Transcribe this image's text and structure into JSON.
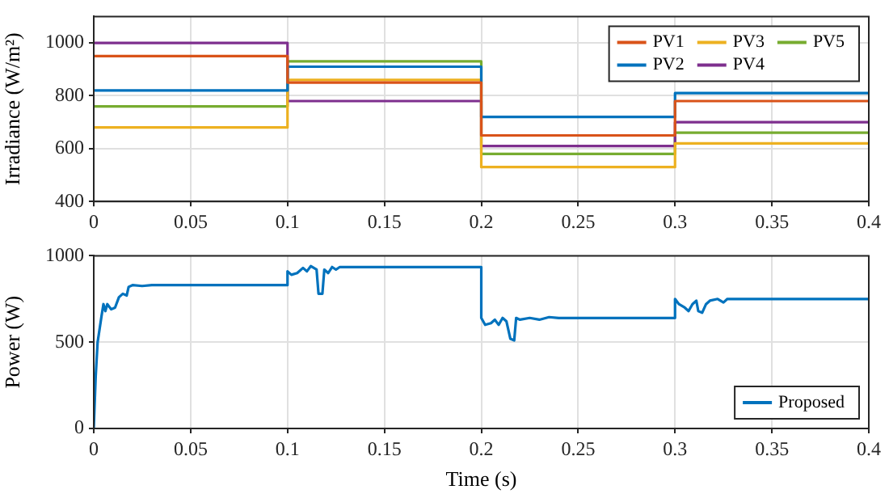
{
  "chart_data": [
    {
      "type": "step",
      "ylabel": "Irradiance (W/m²)",
      "x": [
        0,
        0.1,
        0.2,
        0.3,
        0.4
      ],
      "xlim": [
        0,
        0.4
      ],
      "xticks": [
        0,
        0.05,
        0.1,
        0.15,
        0.2,
        0.25,
        0.3,
        0.35,
        0.4
      ],
      "ylim": [
        400,
        1100
      ],
      "yticks": [
        400,
        600,
        800,
        1000
      ],
      "grid": true,
      "legend": "top right",
      "series": [
        {
          "name": "PV1",
          "color": "#d95319",
          "values": [
            950,
            850,
            650,
            780,
            780
          ]
        },
        {
          "name": "PV2",
          "color": "#0072bd",
          "values": [
            820,
            910,
            720,
            810,
            810
          ]
        },
        {
          "name": "PV3",
          "color": "#edb120",
          "values": [
            680,
            860,
            530,
            620,
            620
          ]
        },
        {
          "name": "PV4",
          "color": "#7e2f8e",
          "values": [
            1000,
            780,
            610,
            700,
            700
          ]
        },
        {
          "name": "PV5",
          "color": "#77ac30",
          "values": [
            760,
            930,
            580,
            660,
            660
          ]
        }
      ]
    },
    {
      "type": "line",
      "xlabel": "Time (s)",
      "ylabel": "Power (W)",
      "xlim": [
        0,
        0.4
      ],
      "xticks": [
        0,
        0.05,
        0.1,
        0.15,
        0.2,
        0.25,
        0.3,
        0.35,
        0.4
      ],
      "ylim": [
        0,
        1000
      ],
      "yticks": [
        0,
        500,
        1000
      ],
      "grid": true,
      "legend": "bottom right",
      "series": [
        {
          "name": "Proposed",
          "color": "#0072bd",
          "x": [
            0,
            0.001,
            0.002,
            0.004,
            0.005,
            0.006,
            0.007,
            0.009,
            0.011,
            0.013,
            0.015,
            0.017,
            0.018,
            0.02,
            0.025,
            0.03,
            0.1,
            0.1,
            0.102,
            0.105,
            0.108,
            0.11,
            0.112,
            0.115,
            0.116,
            0.118,
            0.119,
            0.121,
            0.123,
            0.125,
            0.127,
            0.2,
            0.2,
            0.202,
            0.205,
            0.207,
            0.209,
            0.211,
            0.213,
            0.215,
            0.217,
            0.218,
            0.22,
            0.225,
            0.23,
            0.235,
            0.24,
            0.3,
            0.3,
            0.302,
            0.305,
            0.307,
            0.309,
            0.311,
            0.312,
            0.314,
            0.316,
            0.318,
            0.322,
            0.325,
            0.327,
            0.4
          ],
          "values": [
            0,
            300,
            500,
            650,
            720,
            680,
            720,
            690,
            700,
            760,
            780,
            770,
            820,
            830,
            825,
            830,
            830,
            910,
            890,
            900,
            930,
            910,
            940,
            920,
            780,
            780,
            920,
            900,
            935,
            920,
            935,
            935,
            640,
            600,
            610,
            630,
            600,
            640,
            620,
            520,
            510,
            640,
            630,
            640,
            630,
            645,
            640,
            640,
            750,
            720,
            700,
            680,
            720,
            740,
            680,
            670,
            720,
            740,
            750,
            730,
            750,
            750
          ]
        }
      ]
    }
  ]
}
